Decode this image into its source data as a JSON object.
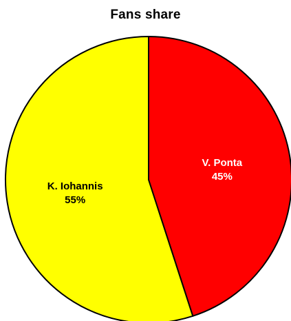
{
  "chart_data": {
    "type": "pie",
    "title": "Fans share",
    "categories": [
      "V. Ponta",
      "K. Iohannis"
    ],
    "values": [
      45,
      55
    ],
    "value_labels": [
      "45%",
      "55%"
    ],
    "colors": [
      "#ff0000",
      "#ffff00"
    ],
    "label_colors": [
      "#ffffff",
      "#000000"
    ],
    "edge_color": "#000000",
    "start_angle": "12 o'clock",
    "direction": "clockwise",
    "legend": "none"
  }
}
